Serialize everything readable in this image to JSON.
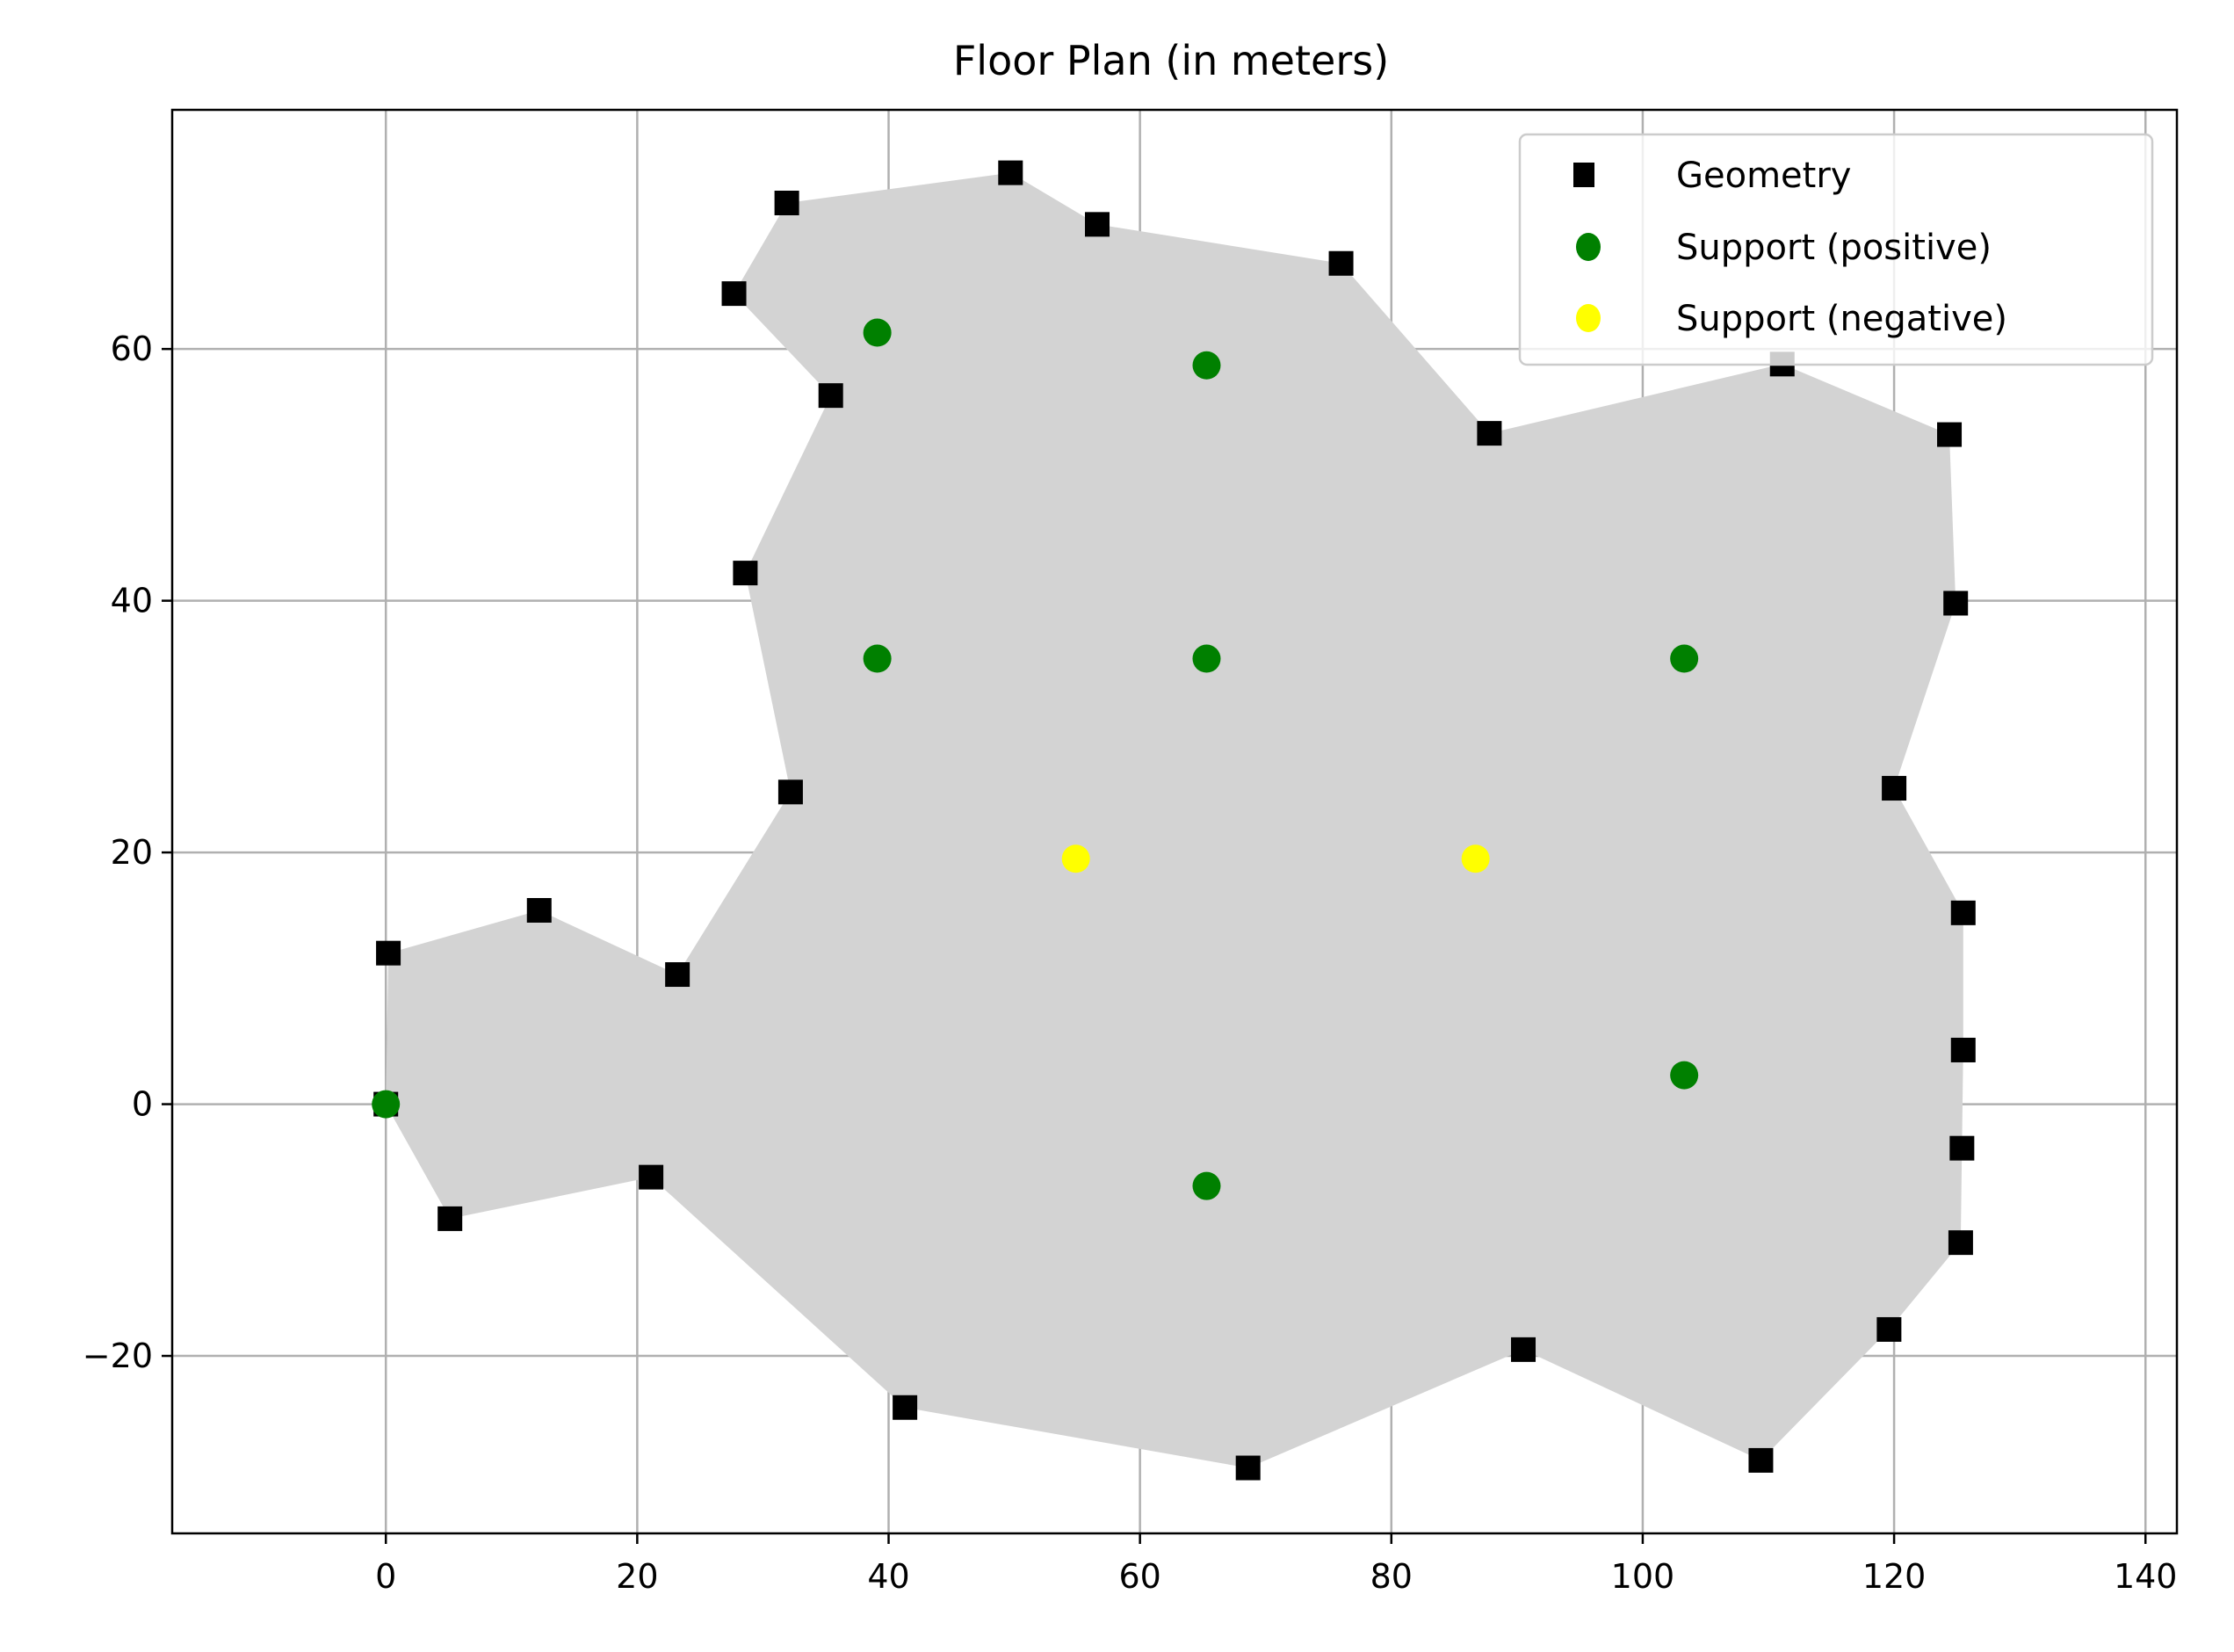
{
  "chart_data": {
    "type": "scatter",
    "title": "Floor Plan (in meters)",
    "xlabel": "",
    "ylabel": "",
    "xlim": [
      -17.0,
      142.5
    ],
    "ylim": [
      -34.1,
      79.0
    ],
    "xticks": [
      0,
      20,
      40,
      60,
      80,
      100,
      120,
      140
    ],
    "yticks": [
      -20,
      0,
      20,
      40,
      60
    ],
    "grid": true,
    "legend_position": "upper right",
    "polygon_fill": "#d3d3d3",
    "series": [
      {
        "name": "Geometry",
        "marker": "square",
        "color": "#000000",
        "points": [
          [
            0,
            0
          ],
          [
            5.1,
            -9.1
          ],
          [
            21.1,
            -5.8
          ],
          [
            41.3,
            -24.1
          ],
          [
            68.6,
            -28.9
          ],
          [
            90.5,
            -19.5
          ],
          [
            109.4,
            -28.3
          ],
          [
            119.6,
            -17.9
          ],
          [
            125.3,
            -11.0
          ],
          [
            125.4,
            -3.5
          ],
          [
            125.5,
            4.3
          ],
          [
            125.5,
            15.2
          ],
          [
            120.0,
            25.1
          ],
          [
            124.9,
            39.8
          ],
          [
            124.4,
            53.2
          ],
          [
            111.1,
            58.8
          ],
          [
            87.8,
            53.3
          ],
          [
            76.0,
            66.8
          ],
          [
            56.6,
            69.9
          ],
          [
            49.7,
            74.0
          ],
          [
            31.9,
            71.6
          ],
          [
            27.7,
            64.4
          ],
          [
            35.4,
            56.3
          ],
          [
            28.6,
            42.2
          ],
          [
            32.2,
            24.8
          ],
          [
            23.2,
            10.3
          ],
          [
            12.2,
            15.4
          ],
          [
            0.2,
            12.0
          ]
        ]
      },
      {
        "name": "Support (positive)",
        "marker": "circle",
        "color": "#008000",
        "points": [
          [
            0,
            0
          ],
          [
            39.1,
            61.3
          ],
          [
            65.3,
            58.7
          ],
          [
            39.1,
            35.4
          ],
          [
            65.3,
            35.4
          ],
          [
            103.3,
            35.4
          ],
          [
            103.3,
            2.3
          ],
          [
            65.3,
            -6.5
          ]
        ]
      },
      {
        "name": "Support (negative)",
        "marker": "circle",
        "color": "#ffff00",
        "points": [
          [
            54.9,
            19.5
          ],
          [
            86.7,
            19.5
          ]
        ]
      }
    ]
  },
  "legend": {
    "items": [
      {
        "label": "Geometry"
      },
      {
        "label": "Support (positive)"
      },
      {
        "label": "Support (negative)"
      }
    ]
  }
}
